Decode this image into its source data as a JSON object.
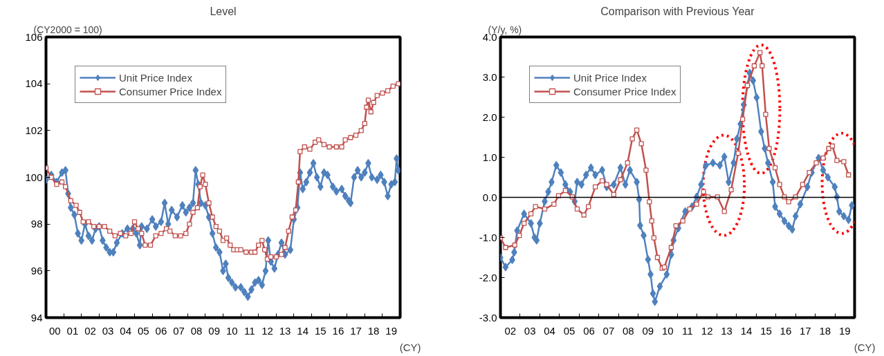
{
  "chart_data": [
    {
      "type": "line",
      "title": "Level",
      "ylabel": "(CY2000 = 100)",
      "xlabel": "(CY)",
      "legend": "top left",
      "grid": false,
      "line_style": "solid",
      "xlim": [
        -0.5,
        19.5
      ],
      "ylim": [
        94,
        106
      ],
      "yticks": [
        94,
        96,
        98,
        100,
        102,
        104,
        106
      ],
      "xticks": [
        {
          "value": 0,
          "label": "00"
        },
        {
          "value": 1,
          "label": "01"
        },
        {
          "value": 2,
          "label": "02"
        },
        {
          "value": 3,
          "label": "03"
        },
        {
          "value": 4,
          "label": "04"
        },
        {
          "value": 5,
          "label": "05"
        },
        {
          "value": 6,
          "label": "06"
        },
        {
          "value": 7,
          "label": "07"
        },
        {
          "value": 8,
          "label": "08"
        },
        {
          "value": 9,
          "label": "09"
        },
        {
          "value": 10,
          "label": "10"
        },
        {
          "value": 11,
          "label": "11"
        },
        {
          "value": 12,
          "label": "12"
        },
        {
          "value": 13,
          "label": "13"
        },
        {
          "value": 14,
          "label": "14"
        },
        {
          "value": 15,
          "label": "15"
        },
        {
          "value": 16,
          "label": "16"
        },
        {
          "value": 17,
          "label": "17"
        },
        {
          "value": 18,
          "label": "18"
        },
        {
          "value": 19,
          "label": "19"
        },
        {
          "value": 0.5,
          "label": null
        },
        {
          "value": 1.5,
          "label": null
        },
        {
          "value": 2.5,
          "label": null
        },
        {
          "value": 3.5,
          "label": null
        },
        {
          "value": 4.5,
          "label": null
        },
        {
          "value": 5.5,
          "label": null
        },
        {
          "value": 6.5,
          "label": null
        },
        {
          "value": 7.5,
          "label": null
        },
        {
          "value": 8.5,
          "label": null
        },
        {
          "value": 9.5,
          "label": null
        },
        {
          "value": 10.5,
          "label": null
        },
        {
          "value": 11.5,
          "label": null
        },
        {
          "value": 12.5,
          "label": null
        },
        {
          "value": 13.5,
          "label": null
        },
        {
          "value": 14.5,
          "label": null
        },
        {
          "value": 15.5,
          "label": null
        },
        {
          "value": 16.5,
          "label": null
        },
        {
          "value": 17.5,
          "label": null
        },
        {
          "value": 18.5,
          "label": null
        }
      ],
      "series": [
        {
          "name": "Unit Price Index",
          "color": "#4f81bd",
          "marker": "diamond",
          "x": [
            -0.5,
            -0.2,
            0.1,
            0.4,
            0.6,
            0.75,
            0.9,
            1.1,
            1.3,
            1.5,
            1.7,
            1.9,
            2.1,
            2.3,
            2.5,
            2.7,
            2.9,
            3.1,
            3.3,
            3.5,
            3.8,
            4.1,
            4.4,
            4.6,
            4.8,
            4.9,
            5.2,
            5.5,
            5.7,
            6.0,
            6.2,
            6.4,
            6.6,
            6.9,
            7.2,
            7.4,
            7.6,
            7.8,
            7.95,
            8.1,
            8.25,
            8.5,
            8.7,
            8.9,
            9.1,
            9.3,
            9.5,
            9.65,
            9.8,
            10.0,
            10.2,
            10.5,
            10.7,
            10.9,
            11.1,
            11.3,
            11.5,
            11.7,
            11.9,
            12.05,
            12.2,
            12.4,
            12.6,
            12.8,
            13.0,
            13.3,
            13.5,
            13.7,
            13.85,
            14.0,
            14.2,
            14.4,
            14.6,
            14.8,
            15.0,
            15.2,
            15.4,
            15.7,
            15.9,
            16.2,
            16.4,
            16.6,
            16.7,
            16.9,
            17.1,
            17.3,
            17.5,
            17.7,
            17.9,
            18.2,
            18.4,
            18.6,
            18.8,
            19.0,
            19.2,
            19.3,
            19.4
          ],
          "values": [
            99.9,
            100.1,
            99.8,
            100.2,
            100.3,
            99.3,
            98.7,
            98.4,
            97.6,
            97.3,
            98.0,
            97.5,
            97.3,
            97.8,
            97.9,
            97.3,
            97.0,
            96.8,
            96.8,
            97.2,
            97.6,
            97.8,
            97.8,
            97.6,
            97.1,
            97.9,
            97.8,
            98.2,
            97.9,
            98.1,
            98.9,
            98.0,
            98.6,
            98.3,
            98.8,
            98.5,
            98.7,
            98.9,
            100.3,
            99.7,
            98.9,
            98.8,
            98.3,
            97.6,
            97.0,
            96.8,
            96.0,
            96.3,
            95.7,
            95.5,
            95.3,
            95.3,
            95.1,
            94.9,
            95.2,
            95.5,
            95.6,
            95.4,
            96.0,
            97.3,
            96.4,
            96.1,
            96.7,
            97.2,
            96.7,
            96.9,
            98.2,
            98.7,
            100.2,
            99.5,
            99.8,
            100.2,
            100.6,
            100.0,
            99.6,
            100.2,
            100.1,
            99.6,
            99.4,
            99.5,
            99.2,
            99.0,
            98.9,
            100.0,
            100.3,
            100.0,
            100.2,
            100.6,
            100.0,
            99.9,
            100.1,
            99.8,
            99.2,
            99.7,
            99.8,
            100.8,
            100.3
          ]
        },
        {
          "name": "Consumer Price Index",
          "color": "#c0504d",
          "marker": "square",
          "x": [
            -0.5,
            -0.2,
            0.1,
            0.4,
            0.6,
            0.9,
            1.2,
            1.4,
            1.6,
            1.9,
            2.2,
            2.5,
            2.8,
            3.1,
            3.4,
            3.7,
            4.0,
            4.3,
            4.5,
            4.7,
            4.9,
            5.1,
            5.4,
            5.7,
            6.0,
            6.3,
            6.5,
            6.8,
            7.1,
            7.4,
            7.6,
            7.8,
            8.05,
            8.2,
            8.35,
            8.5,
            8.7,
            8.9,
            9.1,
            9.3,
            9.5,
            9.7,
            9.9,
            10.1,
            10.3,
            10.5,
            10.8,
            11.1,
            11.3,
            11.5,
            11.7,
            11.85,
            12.0,
            12.2,
            12.5,
            12.8,
            13.0,
            13.2,
            13.4,
            13.6,
            13.75,
            13.85,
            14.1,
            14.4,
            14.7,
            14.9,
            15.2,
            15.5,
            15.9,
            16.2,
            16.4,
            16.7,
            17.0,
            17.3,
            17.5,
            17.6,
            17.7,
            17.85,
            18.0,
            18.2,
            18.5,
            18.8,
            19.1,
            19.4
          ],
          "values": [
            100.4,
            100.0,
            99.7,
            99.8,
            99.6,
            99.0,
            98.8,
            98.5,
            98.1,
            98.1,
            97.9,
            97.9,
            97.9,
            97.7,
            97.5,
            97.6,
            97.5,
            97.6,
            98.1,
            97.8,
            97.6,
            97.1,
            97.1,
            97.5,
            97.6,
            97.8,
            97.7,
            97.5,
            97.5,
            97.6,
            98.0,
            98.5,
            98.7,
            99.6,
            100.1,
            99.7,
            98.9,
            98.3,
            97.9,
            97.7,
            97.3,
            97.4,
            97.1,
            96.9,
            96.9,
            96.9,
            96.8,
            96.8,
            96.8,
            97.1,
            97.3,
            96.9,
            96.5,
            96.6,
            96.6,
            96.7,
            97.0,
            97.7,
            98.3,
            98.6,
            99.8,
            101.1,
            101.3,
            101.2,
            101.5,
            101.6,
            101.4,
            101.3,
            101.3,
            101.3,
            101.6,
            101.7,
            101.8,
            102.0,
            102.3,
            103.0,
            103.3,
            102.8,
            103.2,
            103.5,
            103.6,
            103.7,
            103.9,
            104.0
          ]
        }
      ]
    },
    {
      "type": "line",
      "title": "Comparison with Previous Year",
      "ylabel": "(Y/y,  %)",
      "xlabel": "(CY)",
      "legend": "top left",
      "grid": false,
      "line_style": "solid",
      "xlim": [
        1.5,
        19.5
      ],
      "ylim": [
        -3,
        4
      ],
      "yticks": [
        {
          "value": -3,
          "label": "-3.0"
        },
        {
          "value": -2,
          "label": "-2.0"
        },
        {
          "value": -1,
          "label": "-1.0"
        },
        {
          "value": 0,
          "label": "0.0"
        },
        {
          "value": 1,
          "label": "1.0"
        },
        {
          "value": 2,
          "label": "2.0"
        },
        {
          "value": 3,
          "label": "3.0"
        },
        {
          "value": 4,
          "label": "4.0"
        }
      ],
      "xticks": [
        {
          "value": 2,
          "label": "02"
        },
        {
          "value": 3,
          "label": "03"
        },
        {
          "value": 4,
          "label": "04"
        },
        {
          "value": 5,
          "label": "05"
        },
        {
          "value": 6,
          "label": "06"
        },
        {
          "value": 7,
          "label": "07"
        },
        {
          "value": 8,
          "label": "08"
        },
        {
          "value": 9,
          "label": "09"
        },
        {
          "value": 10,
          "label": "10"
        },
        {
          "value": 11,
          "label": "11"
        },
        {
          "value": 12,
          "label": "12"
        },
        {
          "value": 13,
          "label": "13"
        },
        {
          "value": 14,
          "label": "14"
        },
        {
          "value": 15,
          "label": "15"
        },
        {
          "value": 16,
          "label": "16"
        },
        {
          "value": 17,
          "label": "17"
        },
        {
          "value": 18,
          "label": "18"
        },
        {
          "value": 19,
          "label": "19"
        },
        {
          "value": 2.5,
          "label": null
        },
        {
          "value": 3.5,
          "label": null
        },
        {
          "value": 4.5,
          "label": null
        },
        {
          "value": 5.5,
          "label": null
        },
        {
          "value": 6.5,
          "label": null
        },
        {
          "value": 7.5,
          "label": null
        },
        {
          "value": 8.5,
          "label": null
        },
        {
          "value": 9.5,
          "label": null
        },
        {
          "value": 10.5,
          "label": null
        },
        {
          "value": 11.5,
          "label": null
        },
        {
          "value": 12.5,
          "label": null
        },
        {
          "value": 13.5,
          "label": null
        },
        {
          "value": 14.5,
          "label": null
        },
        {
          "value": 15.5,
          "label": null
        },
        {
          "value": 16.5,
          "label": null
        },
        {
          "value": 17.5,
          "label": null
        },
        {
          "value": 18.5,
          "label": null
        }
      ],
      "ref_lines": [
        {
          "axis": "y",
          "value": 0,
          "color": "#000000"
        }
      ],
      "series": [
        {
          "name": "Unit Price Index",
          "color": "#4f81bd",
          "marker": "diamond",
          "x": [
            1.5,
            1.76,
            2.1,
            2.2,
            2.35,
            2.7,
            3.05,
            3.23,
            3.34,
            3.5,
            3.75,
            3.93,
            4.1,
            4.34,
            4.57,
            4.8,
            5.04,
            5.27,
            5.4,
            5.62,
            5.85,
            6.1,
            6.32,
            6.67,
            6.9,
            7.26,
            7.6,
            7.85,
            8.08,
            8.43,
            8.55,
            8.6,
            8.78,
            9.0,
            9.13,
            9.25,
            9.35,
            9.6,
            9.95,
            10.18,
            10.3,
            10.54,
            10.89,
            11.24,
            11.47,
            11.7,
            11.94,
            12.3,
            12.65,
            12.88,
            13.1,
            13.35,
            13.52,
            13.7,
            13.87,
            14.05,
            14.17,
            14.34,
            14.52,
            14.75,
            14.93,
            15.1,
            15.34,
            15.46,
            15.69,
            15.93,
            16.15,
            16.33,
            16.5,
            16.74,
            17.1,
            17.32,
            17.67,
            17.9,
            18.14,
            18.49,
            18.6,
            18.72,
            18.95,
            19.19,
            19.36
          ],
          "values": [
            -1.5,
            -1.74,
            -1.56,
            -1.37,
            -0.83,
            -0.41,
            -0.65,
            -1.0,
            -1.07,
            -0.65,
            -0.1,
            0.14,
            0.38,
            0.8,
            0.62,
            0.32,
            0.14,
            -0.1,
            0.38,
            0.32,
            0.56,
            0.74,
            0.56,
            0.68,
            0.26,
            0.32,
            0.74,
            0.32,
            0.68,
            0.38,
            -0.05,
            -0.7,
            -0.95,
            -1.55,
            -1.92,
            -2.4,
            -2.6,
            -2.22,
            -1.92,
            -1.43,
            -1.07,
            -0.77,
            -0.35,
            -0.23,
            0.01,
            0.32,
            0.8,
            0.86,
            0.8,
            1.01,
            0.38,
            0.86,
            1.46,
            1.83,
            2.31,
            2.79,
            3.1,
            2.91,
            2.49,
            1.64,
            1.22,
            0.86,
            0.38,
            -0.23,
            -0.41,
            -0.59,
            -0.71,
            -0.8,
            -0.47,
            -0.17,
            0.26,
            0.62,
            0.98,
            0.68,
            0.5,
            0.26,
            0.01,
            -0.35,
            -0.47,
            -0.56,
            -0.2
          ]
        },
        {
          "name": "Consumer Price Index",
          "color": "#c0504d",
          "marker": "square",
          "x": [
            1.5,
            1.76,
            2.23,
            2.46,
            2.7,
            3.05,
            3.28,
            3.75,
            4.22,
            4.45,
            4.8,
            5.15,
            5.4,
            5.74,
            5.97,
            6.32,
            6.67,
            6.9,
            7.26,
            7.6,
            7.96,
            8.2,
            8.43,
            8.66,
            8.9,
            9.07,
            9.19,
            9.3,
            9.48,
            9.72,
            9.83,
            10.18,
            10.42,
            10.77,
            11.12,
            11.47,
            11.82,
            12.05,
            12.53,
            12.88,
            13.23,
            13.58,
            13.81,
            14.05,
            14.4,
            14.69,
            14.8,
            14.98,
            15.16,
            15.46,
            15.69,
            15.93,
            16.15,
            16.5,
            16.86,
            17.2,
            17.55,
            17.9,
            18.19,
            18.37,
            18.6,
            18.95,
            19.19
          ],
          "values": [
            -1.01,
            -1.25,
            -1.19,
            -0.95,
            -0.65,
            -0.41,
            -0.23,
            -0.29,
            -0.17,
            0.04,
            0.17,
            0.01,
            -0.29,
            -0.44,
            -0.23,
            0.26,
            0.41,
            0.32,
            0.07,
            0.44,
            0.86,
            1.46,
            1.68,
            1.34,
            0.68,
            -0.11,
            -0.59,
            -1.01,
            -1.5,
            -1.77,
            -1.74,
            -1.25,
            -0.71,
            -0.59,
            -0.29,
            -0.17,
            0.14,
            0.01,
            0.01,
            -0.35,
            0.19,
            1.1,
            1.95,
            2.79,
            3.28,
            3.61,
            3.28,
            2.07,
            1.22,
            0.74,
            0.32,
            0.01,
            -0.11,
            0.01,
            0.32,
            0.62,
            0.86,
            0.98,
            1.22,
            1.28,
            0.92,
            0.89,
            0.56
          ]
        }
      ]
    }
  ]
}
